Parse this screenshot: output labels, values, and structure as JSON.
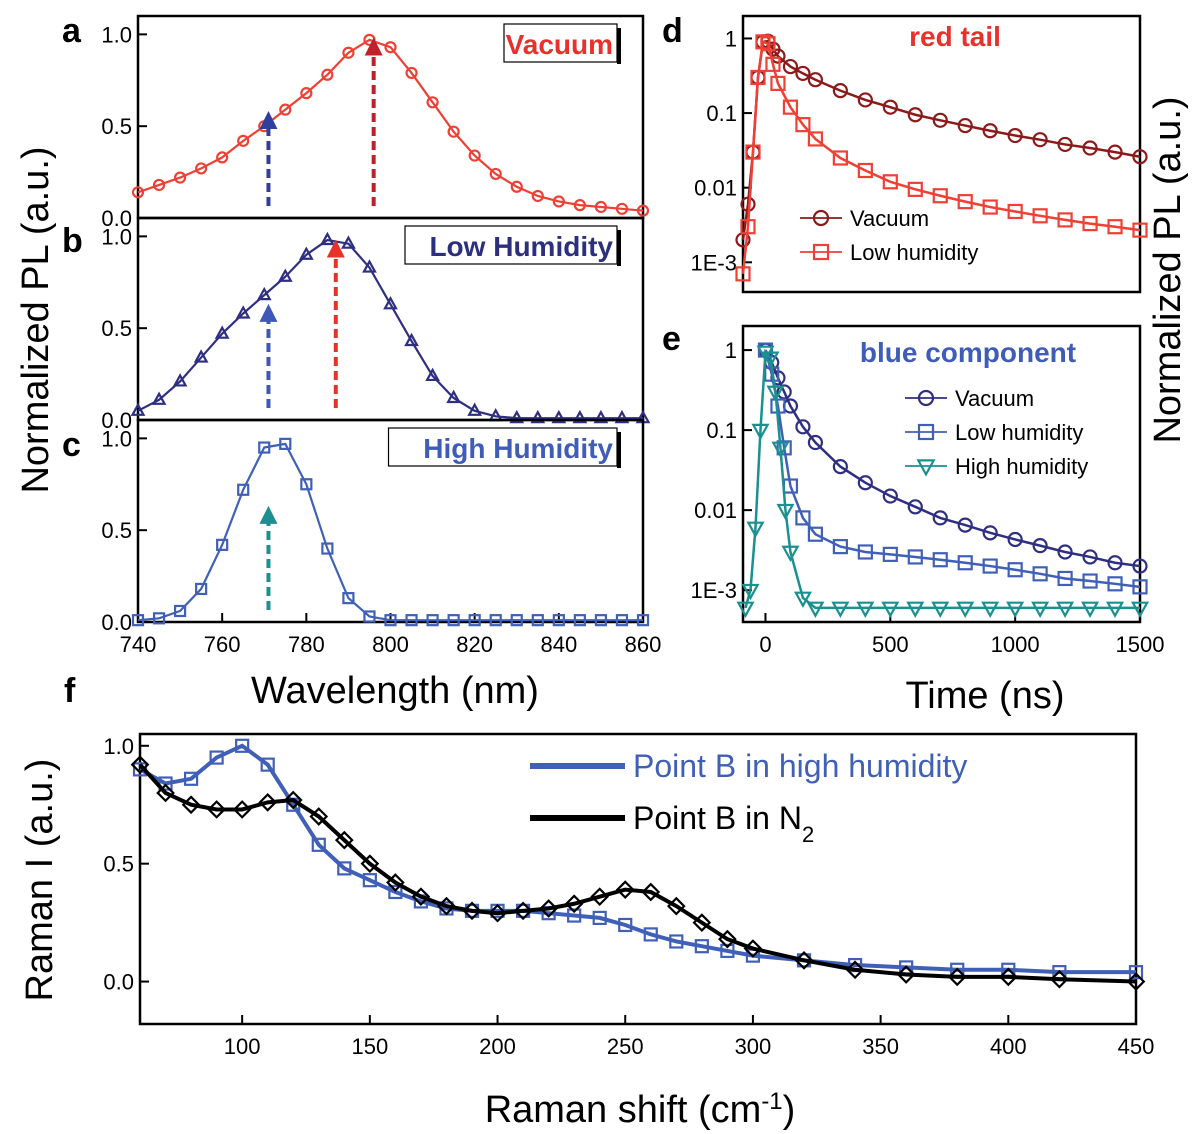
{
  "figure": {
    "ylabel_pl": "Normalized PL (a.u.)",
    "ylabel_pl_right": "Normalized PL (a.u.)",
    "xlabel_wavelength": "Wavelength (nm)",
    "xlabel_time": "Time (ns)",
    "ylabel_raman": "Raman I (a.u.)",
    "xlabel_raman": "Raman shift (cm",
    "xlabel_raman_sup": "-1",
    "xlabel_raman_end": ")"
  },
  "chart_data": [
    {
      "panel": "a",
      "type": "line",
      "tag": "Vacuum",
      "tag_color": "#e8312b",
      "color": "#ee4035",
      "marker": "circle",
      "xlim": [
        740,
        860
      ],
      "ylim": [
        0,
        1.1
      ],
      "yticks": [
        "0.0",
        "0.5",
        "1.0"
      ],
      "ytick_values": [
        0,
        0.5,
        1.0
      ],
      "x": [
        740,
        745,
        750,
        755,
        760,
        765,
        770,
        775,
        780,
        785,
        790,
        795,
        800,
        805,
        810,
        815,
        820,
        825,
        830,
        835,
        840,
        845,
        850,
        855,
        860
      ],
      "y": [
        0.14,
        0.18,
        0.22,
        0.27,
        0.33,
        0.42,
        0.5,
        0.59,
        0.68,
        0.78,
        0.9,
        0.97,
        0.93,
        0.79,
        0.63,
        0.47,
        0.34,
        0.24,
        0.17,
        0.12,
        0.09,
        0.07,
        0.06,
        0.05,
        0.04
      ],
      "arrows": [
        {
          "x": 771,
          "y_top": 0.55,
          "color": "#2f3f9e"
        },
        {
          "x": 796,
          "y_top": 0.95,
          "color": "#c0202c"
        }
      ]
    },
    {
      "panel": "b",
      "type": "line",
      "tag": "Low Humidity",
      "tag_color": "#2b2f7e",
      "color": "#2f2f82",
      "marker": "triangle-up",
      "xlim": [
        740,
        860
      ],
      "ylim": [
        0,
        1.1
      ],
      "yticks": [
        "0.0",
        "0.5",
        "1.0"
      ],
      "ytick_values": [
        0,
        0.5,
        1.0
      ],
      "x": [
        740,
        745,
        750,
        755,
        760,
        765,
        770,
        775,
        780,
        785,
        790,
        795,
        800,
        805,
        810,
        815,
        820,
        825,
        830,
        835,
        840,
        845,
        850,
        855,
        860
      ],
      "y": [
        0.05,
        0.11,
        0.21,
        0.34,
        0.47,
        0.58,
        0.68,
        0.78,
        0.9,
        0.98,
        0.96,
        0.83,
        0.63,
        0.43,
        0.24,
        0.12,
        0.05,
        0.02,
        0.01,
        0.01,
        0.01,
        0.01,
        0.01,
        0.01,
        0.01
      ],
      "arrows": [
        {
          "x": 771,
          "y_top": 0.6,
          "color": "#3d58b8"
        },
        {
          "x": 787,
          "y_top": 0.95,
          "color": "#e8312b"
        }
      ]
    },
    {
      "panel": "c",
      "type": "line",
      "tag": "High Humidity",
      "tag_color": "#3f5cb8",
      "color": "#4060b8",
      "marker": "square",
      "xlim": [
        740,
        860
      ],
      "ylim": [
        0,
        1.1
      ],
      "yticks": [
        "0.0",
        "0.5",
        "1.0"
      ],
      "ytick_values": [
        0,
        0.5,
        1.0
      ],
      "xticks": [
        "740",
        "760",
        "780",
        "800",
        "820",
        "840",
        "860"
      ],
      "xtick_values": [
        740,
        760,
        780,
        800,
        820,
        840,
        860
      ],
      "x": [
        740,
        745,
        750,
        755,
        760,
        765,
        770,
        775,
        780,
        785,
        790,
        795,
        800,
        805,
        810,
        815,
        820,
        825,
        830,
        835,
        840,
        845,
        850,
        855,
        860
      ],
      "y": [
        0.01,
        0.02,
        0.06,
        0.18,
        0.42,
        0.72,
        0.95,
        0.97,
        0.75,
        0.4,
        0.13,
        0.03,
        0.01,
        0.01,
        0.01,
        0.01,
        0.01,
        0.01,
        0.01,
        0.01,
        0.01,
        0.01,
        0.01,
        0.01,
        0.01
      ],
      "arrows": [
        {
          "x": 771,
          "y_top": 0.6,
          "color": "#1a9090"
        }
      ]
    },
    {
      "panel": "d",
      "type": "scatter",
      "tag": "red tail",
      "tag_color": "#e8312b",
      "yscale": "log",
      "xlim": [
        -90,
        1500
      ],
      "ylim": [
        0.0004,
        2
      ],
      "yticks": [
        "1",
        "0.1",
        "0.01",
        "1E-3"
      ],
      "ytick_values": [
        1,
        0.1,
        0.01,
        0.001
      ],
      "series": [
        {
          "name": "Vacuum",
          "color": "#8c1a1a",
          "marker": "circle",
          "x": [
            -90,
            -70,
            -50,
            -30,
            -10,
            10,
            30,
            50,
            100,
            150,
            200,
            300,
            400,
            500,
            600,
            700,
            800,
            900,
            1000,
            1100,
            1200,
            1300,
            1400,
            1500
          ],
          "y": [
            0.002,
            0.006,
            0.03,
            0.3,
            0.9,
            0.92,
            0.72,
            0.58,
            0.42,
            0.34,
            0.28,
            0.2,
            0.15,
            0.12,
            0.095,
            0.08,
            0.068,
            0.058,
            0.05,
            0.044,
            0.038,
            0.034,
            0.03,
            0.026
          ]
        },
        {
          "name": "Low humidity",
          "color": "#ee4035",
          "marker": "square",
          "x": [
            -90,
            -70,
            -50,
            -30,
            -10,
            10,
            30,
            50,
            100,
            150,
            200,
            300,
            400,
            500,
            600,
            700,
            800,
            900,
            1000,
            1100,
            1200,
            1300,
            1400,
            1500
          ],
          "y": [
            0.0007,
            0.003,
            0.03,
            0.3,
            0.9,
            0.85,
            0.45,
            0.25,
            0.12,
            0.07,
            0.045,
            0.025,
            0.017,
            0.012,
            0.0095,
            0.0078,
            0.0065,
            0.0055,
            0.0048,
            0.0042,
            0.0037,
            0.0033,
            0.003,
            0.0027
          ]
        }
      ]
    },
    {
      "panel": "e",
      "type": "scatter",
      "tag": "blue component",
      "tag_color": "#3f5cb8",
      "yscale": "log",
      "xlim": [
        -90,
        1500
      ],
      "ylim": [
        0.0004,
        2
      ],
      "yticks": [
        "1",
        "0.1",
        "0.01",
        "1E-3"
      ],
      "ytick_values": [
        1,
        0.1,
        0.01,
        0.001
      ],
      "xticks": [
        "0",
        "500",
        "1000",
        "1500"
      ],
      "xtick_values": [
        0,
        500,
        1000,
        1500
      ],
      "series": [
        {
          "name": "Vacuum",
          "color": "#2f2f82",
          "marker": "circle",
          "x": [
            0,
            25,
            50,
            75,
            100,
            150,
            200,
            300,
            400,
            500,
            600,
            700,
            800,
            900,
            1000,
            1100,
            1200,
            1300,
            1400,
            1500
          ],
          "y": [
            1.0,
            0.7,
            0.45,
            0.3,
            0.2,
            0.11,
            0.07,
            0.035,
            0.022,
            0.015,
            0.011,
            0.008,
            0.0065,
            0.0052,
            0.0043,
            0.0036,
            0.003,
            0.0026,
            0.0022,
            0.002
          ]
        },
        {
          "name": "Low humidity",
          "color": "#4060b8",
          "marker": "square",
          "x": [
            0,
            25,
            50,
            75,
            100,
            150,
            200,
            300,
            400,
            500,
            600,
            700,
            800,
            900,
            1000,
            1100,
            1200,
            1300,
            1400,
            1500
          ],
          "y": [
            1.0,
            0.5,
            0.2,
            0.06,
            0.02,
            0.008,
            0.005,
            0.0035,
            0.003,
            0.0028,
            0.0026,
            0.0024,
            0.0022,
            0.002,
            0.0018,
            0.0016,
            0.0014,
            0.0013,
            0.0012,
            0.0011
          ]
        },
        {
          "name": "High humidity",
          "color": "#1a9090",
          "marker": "triangle-down",
          "x": [
            -80,
            -60,
            -40,
            -20,
            0,
            20,
            40,
            60,
            80,
            100,
            150,
            200,
            300,
            400,
            500,
            600,
            700,
            800,
            900,
            1000,
            1100,
            1200,
            1300,
            1400,
            1500
          ],
          "y": [
            0.0006,
            0.001,
            0.006,
            0.1,
            0.95,
            0.8,
            0.3,
            0.06,
            0.01,
            0.003,
            0.0008,
            0.0006,
            0.0006,
            0.0006,
            0.0006,
            0.0006,
            0.0006,
            0.0006,
            0.0006,
            0.0006,
            0.0006,
            0.0006,
            0.0006,
            0.0006,
            0.0006
          ]
        }
      ]
    },
    {
      "panel": "f",
      "type": "line",
      "xlim": [
        60,
        450
      ],
      "ylim": [
        -0.18,
        1.05
      ],
      "yticks": [
        "0.0",
        "0.5",
        "1.0"
      ],
      "ytick_values": [
        0,
        0.5,
        1.0
      ],
      "xticks": [
        "100",
        "150",
        "200",
        "250",
        "300",
        "350",
        "400",
        "450"
      ],
      "xtick_values": [
        100,
        150,
        200,
        250,
        300,
        350,
        400,
        450
      ],
      "series": [
        {
          "name": "Point B in high humidity",
          "color": "#4060b8",
          "marker": "square",
          "x": [
            60,
            70,
            80,
            90,
            100,
            110,
            120,
            130,
            140,
            150,
            160,
            170,
            180,
            190,
            200,
            210,
            220,
            230,
            240,
            250,
            260,
            270,
            280,
            290,
            300,
            320,
            340,
            360,
            380,
            400,
            420,
            450
          ],
          "y": [
            0.9,
            0.84,
            0.86,
            0.95,
            1.0,
            0.92,
            0.75,
            0.58,
            0.48,
            0.43,
            0.38,
            0.34,
            0.31,
            0.3,
            0.3,
            0.3,
            0.29,
            0.28,
            0.27,
            0.24,
            0.2,
            0.17,
            0.15,
            0.13,
            0.11,
            0.09,
            0.07,
            0.06,
            0.05,
            0.05,
            0.04,
            0.04
          ]
        },
        {
          "name": "Point B in N",
          "name_sub": "2",
          "color": "#000000",
          "marker": "diamond",
          "x": [
            60,
            70,
            80,
            90,
            100,
            110,
            120,
            130,
            140,
            150,
            160,
            170,
            180,
            190,
            200,
            210,
            220,
            230,
            240,
            250,
            260,
            270,
            280,
            290,
            300,
            320,
            340,
            360,
            380,
            400,
            420,
            450
          ],
          "y": [
            0.92,
            0.8,
            0.75,
            0.73,
            0.73,
            0.76,
            0.77,
            0.7,
            0.6,
            0.5,
            0.42,
            0.36,
            0.32,
            0.3,
            0.29,
            0.3,
            0.31,
            0.33,
            0.36,
            0.39,
            0.38,
            0.32,
            0.25,
            0.18,
            0.14,
            0.09,
            0.05,
            0.03,
            0.02,
            0.02,
            0.01,
            0.0
          ]
        }
      ]
    }
  ]
}
